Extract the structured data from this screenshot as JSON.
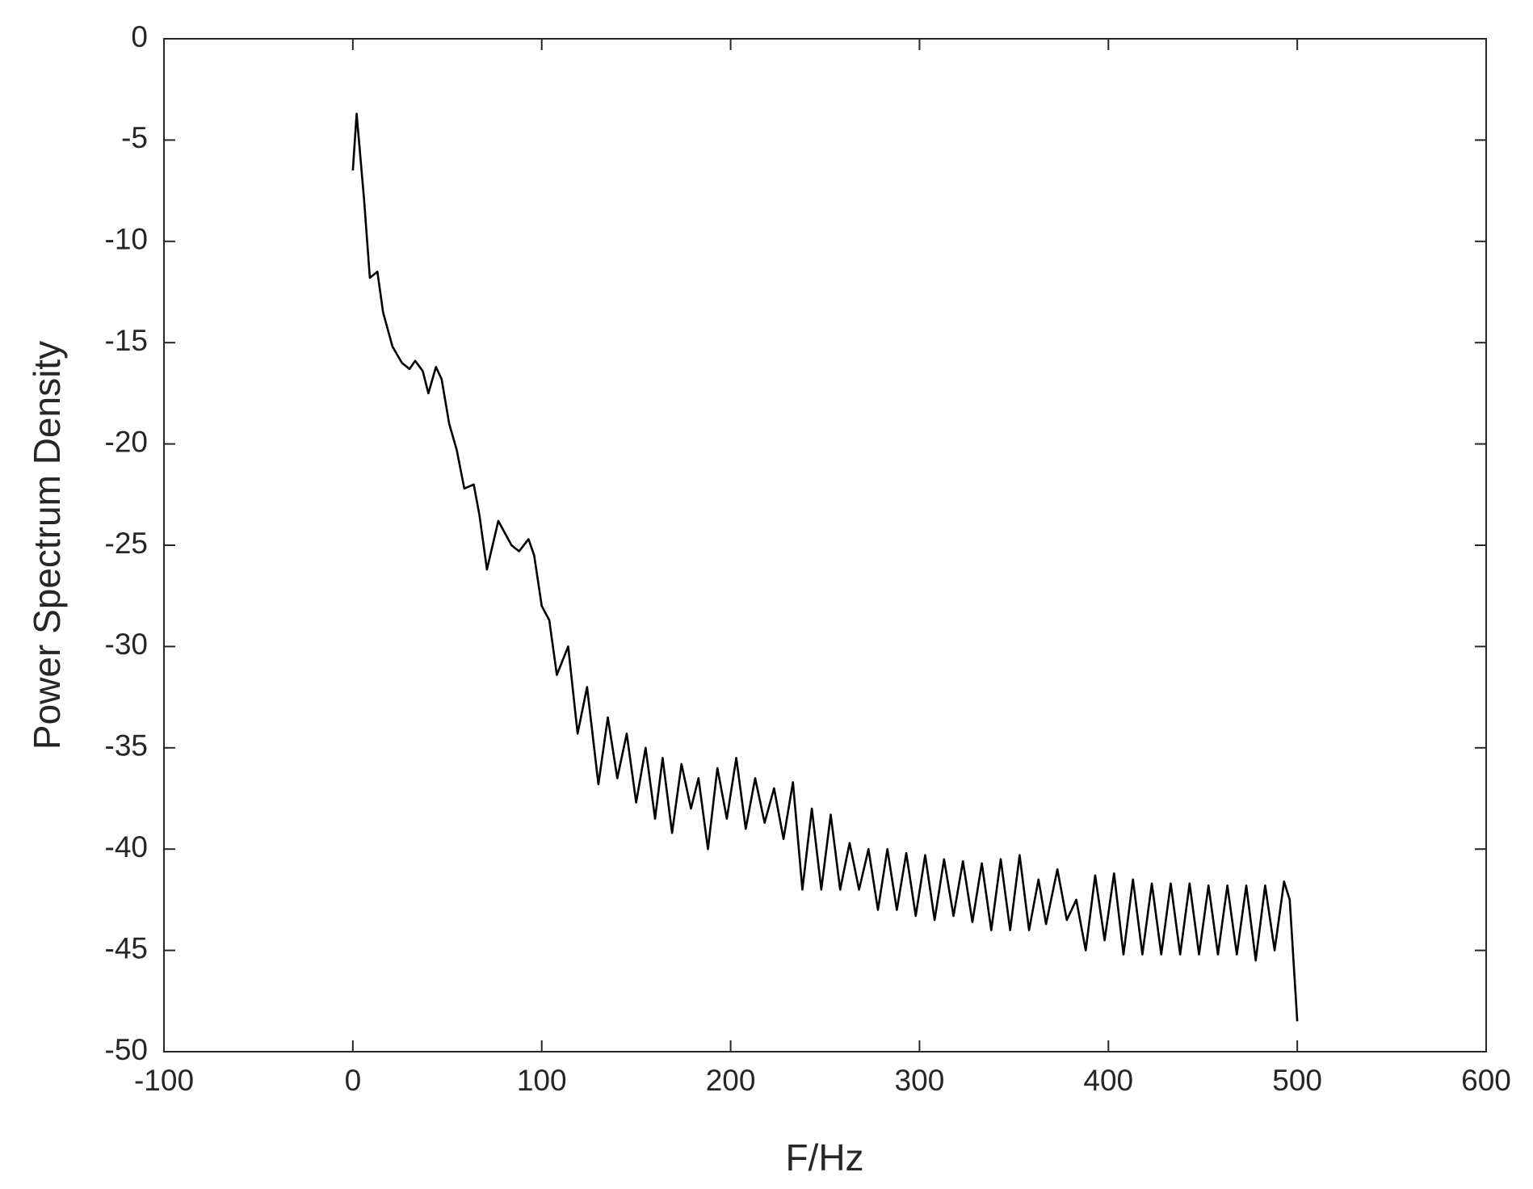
{
  "chart_data": {
    "type": "line",
    "x_label": "F/Hz",
    "y_label": "Power Spectrum Density",
    "xlim": [
      -100,
      600
    ],
    "xticks": [
      -100,
      0,
      100,
      200,
      300,
      400,
      500,
      600
    ],
    "ylim": [
      -50,
      0
    ],
    "yticks": [
      0,
      -5,
      -10,
      -15,
      -20,
      -25,
      -30,
      -35,
      -40,
      -45,
      -50
    ],
    "grid": false,
    "series": [
      {
        "color": "#000000",
        "x": [
          0,
          2,
          6,
          9,
          13,
          16,
          21,
          26,
          30,
          33,
          37,
          40,
          44,
          47,
          51,
          55,
          59,
          64,
          67,
          71,
          77,
          84,
          88,
          93,
          96,
          100,
          104,
          108,
          114,
          119,
          124,
          130,
          135,
          140,
          145,
          150,
          155,
          160,
          164,
          169,
          174,
          179,
          183,
          188,
          193,
          198,
          203,
          208,
          213,
          218,
          223,
          228,
          233,
          238,
          243,
          248,
          253,
          258,
          263,
          268,
          273,
          278,
          283,
          288,
          293,
          298,
          303,
          308,
          313,
          318,
          323,
          328,
          333,
          338,
          343,
          348,
          353,
          358,
          363,
          367,
          373,
          378,
          383,
          388,
          393,
          398,
          403,
          408,
          413,
          418,
          423,
          428,
          433,
          438,
          443,
          448,
          453,
          458,
          463,
          468,
          473,
          478,
          483,
          488,
          493,
          496,
          500
        ],
        "values": [
          -6.5,
          -3.7,
          -8,
          -11.8,
          -11.5,
          -13.5,
          -15.2,
          -16.0,
          -16.3,
          -15.9,
          -16.4,
          -17.5,
          -16.2,
          -16.8,
          -19.0,
          -20.3,
          -22.2,
          -22.0,
          -23.5,
          -26.2,
          -23.8,
          -25.0,
          -25.3,
          -24.7,
          -25.5,
          -28.0,
          -28.7,
          -31.4,
          -30.0,
          -34.3,
          -32.0,
          -36.8,
          -33.5,
          -36.5,
          -34.3,
          -37.7,
          -35.0,
          -38.5,
          -35.5,
          -39.2,
          -35.8,
          -38.0,
          -36.5,
          -40.0,
          -36.0,
          -38.5,
          -35.5,
          -39.0,
          -36.5,
          -38.7,
          -37.0,
          -39.5,
          -36.7,
          -42.0,
          -38.0,
          -42.0,
          -38.3,
          -42.0,
          -39.7,
          -42.0,
          -40.0,
          -43.0,
          -40.0,
          -43.0,
          -40.2,
          -43.3,
          -40.3,
          -43.5,
          -40.5,
          -43.3,
          -40.6,
          -43.6,
          -40.7,
          -44.0,
          -40.5,
          -44.0,
          -40.3,
          -44.0,
          -41.5,
          -43.7,
          -41.0,
          -43.5,
          -42.5,
          -45.0,
          -41.3,
          -44.5,
          -41.2,
          -45.2,
          -41.5,
          -45.2,
          -41.7,
          -45.2,
          -41.7,
          -45.2,
          -41.7,
          -45.2,
          -41.8,
          -45.2,
          -41.8,
          -45.2,
          -41.8,
          -45.5,
          -41.8,
          -45.0,
          -41.6,
          -42.5,
          -48.5
        ]
      }
    ]
  }
}
